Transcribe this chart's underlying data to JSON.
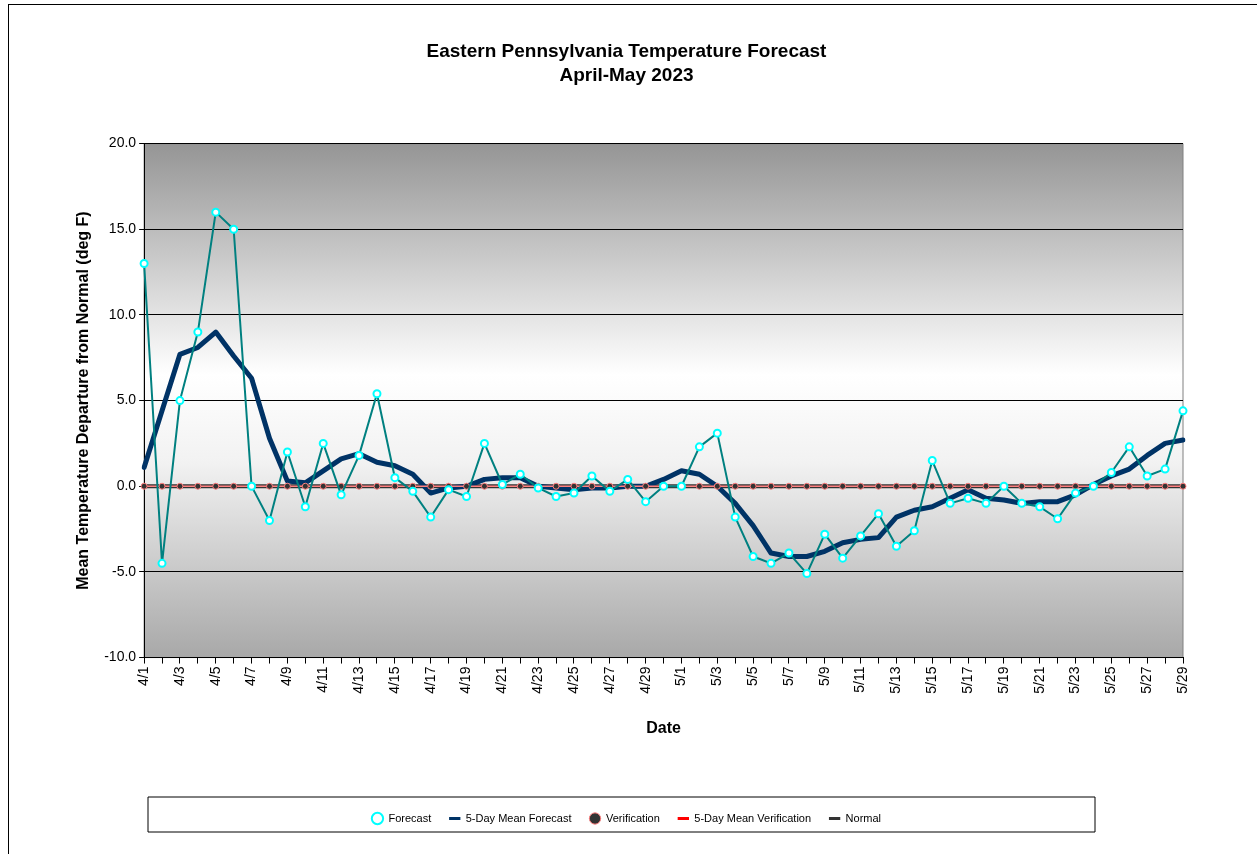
{
  "chart_data": {
    "type": "line",
    "title": "Eastern Pennsylvania Temperature Forecast",
    "subtitle": "April-May 2023",
    "xlabel": "Date",
    "ylabel": "Mean Temperature Departure from Normal (deg F)",
    "categories": [
      "4/1",
      null,
      "4/3",
      null,
      "4/5",
      null,
      "4/7",
      null,
      "4/9",
      null,
      "4/11",
      null,
      "4/13",
      null,
      "4/15",
      null,
      "4/17",
      null,
      "4/19",
      null,
      "4/21",
      null,
      "4/23",
      null,
      "4/25",
      null,
      "4/27",
      null,
      "4/29",
      null,
      "5/1",
      null,
      "5/3",
      null,
      "5/5",
      null,
      "5/7",
      null,
      "5/9",
      null,
      "5/11",
      null,
      "5/13",
      null,
      "5/15",
      null,
      "5/17",
      null,
      "5/19",
      null,
      "5/21",
      null,
      "5/23",
      null,
      "5/25",
      null,
      "5/27",
      null,
      "5/29"
    ],
    "series": [
      {
        "name": "Forecast",
        "color": "#008080",
        "marker": "circle",
        "values": [
          13.0,
          -4.5,
          5.0,
          9.0,
          16.0,
          15.0,
          0.0,
          -2.0,
          2.0,
          -1.2,
          2.5,
          -0.5,
          1.8,
          5.4,
          0.5,
          -0.3,
          -1.8,
          -0.2,
          -0.6,
          2.5,
          0.1,
          0.7,
          -0.1,
          -0.6,
          -0.4,
          0.6,
          -0.3,
          0.4,
          -0.9,
          0.0,
          0.0,
          2.3,
          3.1,
          -1.8,
          -4.1,
          -4.5,
          -3.9,
          -5.1,
          -2.8,
          -4.2,
          -2.9,
          -1.6,
          -3.5,
          -2.6,
          1.5,
          -1.0,
          -0.7,
          -1.0,
          0.0,
          -1.0,
          -1.2,
          -1.9,
          -0.4,
          0.0,
          0.8,
          2.3,
          0.6,
          1.0,
          4.4
        ]
      },
      {
        "name": "5-Day Mean Forecast",
        "color": "#003366",
        "marker": "none",
        "values": [
          1.1,
          4.4,
          7.7,
          8.1,
          9.0,
          7.6,
          6.3,
          2.8,
          0.3,
          0.2,
          0.9,
          1.6,
          1.9,
          1.4,
          1.2,
          0.7,
          -0.4,
          -0.1,
          0.0,
          0.4,
          0.5,
          0.5,
          0.0,
          -0.1,
          -0.2,
          -0.1,
          -0.1,
          0.0,
          0.0,
          0.4,
          0.9,
          0.7,
          0.0,
          -1.0,
          -2.3,
          -3.9,
          -4.1,
          -4.1,
          -3.8,
          -3.3,
          -3.1,
          -3.0,
          -1.8,
          -1.4,
          -1.2,
          -0.7,
          -0.2,
          -0.7,
          -0.8,
          -1.0,
          -0.9,
          -0.9,
          -0.5,
          0.1,
          0.6,
          1.0,
          1.8,
          2.5,
          2.7
        ]
      },
      {
        "name": "Verification",
        "color": "#ff8080",
        "marker": "circle",
        "values": [
          0,
          0,
          0,
          0,
          0,
          0,
          0,
          0,
          0,
          0,
          0,
          0,
          0,
          0,
          0,
          0,
          0,
          0,
          0,
          0,
          0,
          0,
          0,
          0,
          0,
          0,
          0,
          0,
          0,
          0,
          0,
          0,
          0,
          0,
          0,
          0,
          0,
          0,
          0,
          0,
          0,
          0,
          0,
          0,
          0,
          0,
          0,
          0,
          0,
          0,
          0,
          0,
          0,
          0,
          0,
          0,
          0,
          0,
          0
        ]
      },
      {
        "name": "5-Day Mean Verification",
        "color": "#ff0000",
        "marker": "none",
        "values": [
          null,
          null,
          null,
          null,
          null,
          null,
          null,
          null,
          null,
          null,
          null,
          null,
          null,
          null,
          null,
          null,
          null,
          null,
          null,
          null,
          null,
          null,
          null,
          null,
          null,
          null,
          null,
          null,
          null,
          null,
          null,
          null,
          null,
          null,
          null,
          null,
          null,
          null,
          null,
          null,
          null,
          null,
          null,
          null,
          null,
          null,
          null,
          null,
          null,
          null,
          null,
          null,
          null,
          null,
          null,
          null,
          null,
          null,
          null
        ]
      },
      {
        "name": "Normal",
        "color": "#333333",
        "marker": "none",
        "values": [
          0,
          0,
          0,
          0,
          0,
          0,
          0,
          0,
          0,
          0,
          0,
          0,
          0,
          0,
          0,
          0,
          0,
          0,
          0,
          0,
          0,
          0,
          0,
          0,
          0,
          0,
          0,
          0,
          0,
          0,
          0,
          0,
          0,
          0,
          0,
          0,
          0,
          0,
          0,
          0,
          0,
          0,
          0,
          0,
          0,
          0,
          0,
          0,
          0,
          0,
          0,
          0,
          0,
          0,
          0,
          0,
          0,
          0,
          0
        ]
      }
    ],
    "ylim": [
      -10,
      20
    ],
    "yticks": [
      {
        "value": -10,
        "label": "-10.0"
      },
      {
        "value": -5,
        "label": "-5.0"
      },
      {
        "value": 0,
        "label": "0.0"
      },
      {
        "value": 5,
        "label": "5.0"
      },
      {
        "value": 10,
        "label": "10.0"
      },
      {
        "value": 15,
        "label": "15.0"
      },
      {
        "value": 20,
        "label": "20.0"
      }
    ],
    "grid": "y",
    "legend": "bottom",
    "line_style": "solid"
  }
}
